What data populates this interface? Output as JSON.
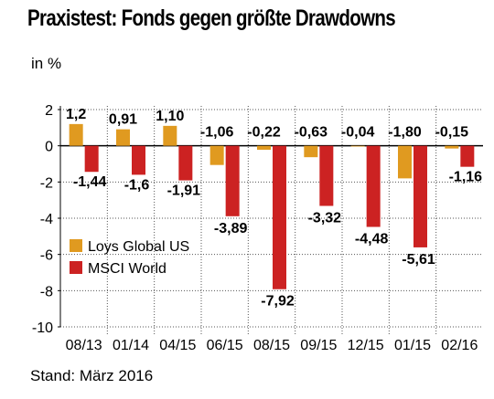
{
  "title": "Praxistest: Fonds gegen größte Drawdowns",
  "unit_label": "in %",
  "footer": "Stand: März 2016",
  "colors": {
    "loys": "#e09a20",
    "msci": "#cc2222",
    "grid": "#555555"
  },
  "chart_data": {
    "type": "bar",
    "title": "Praxistest: Fonds gegen größte Drawdowns",
    "ylabel": "in %",
    "ylim": [
      -10,
      2
    ],
    "yticks": [
      2,
      0,
      -2,
      -4,
      -6,
      -8,
      -10
    ],
    "grid": true,
    "legend": "center-left",
    "categories": [
      "08/13",
      "01/14",
      "04/15",
      "06/15",
      "08/15",
      "09/15",
      "12/15",
      "01/15",
      "02/16"
    ],
    "series": [
      {
        "name": "Loys Global US",
        "values": [
          1.2,
          0.91,
          1.1,
          -1.06,
          -0.22,
          -0.63,
          -0.04,
          -1.8,
          -0.15
        ],
        "labels": [
          "1,2",
          "0,91",
          "1,10",
          "-1,06",
          "-0,22",
          "-0,63",
          "-0,04",
          "-1,80",
          "-0,15"
        ]
      },
      {
        "name": "MSCI World",
        "values": [
          -1.44,
          -1.6,
          -1.91,
          -3.89,
          -7.92,
          -3.32,
          -4.48,
          -5.61,
          -1.16
        ],
        "labels": [
          "-1,44",
          "-1,6",
          "-1,91",
          "-3,89",
          "-7,92",
          "-3,32",
          "-4,48",
          "-5,61",
          "-1,16"
        ]
      }
    ]
  }
}
